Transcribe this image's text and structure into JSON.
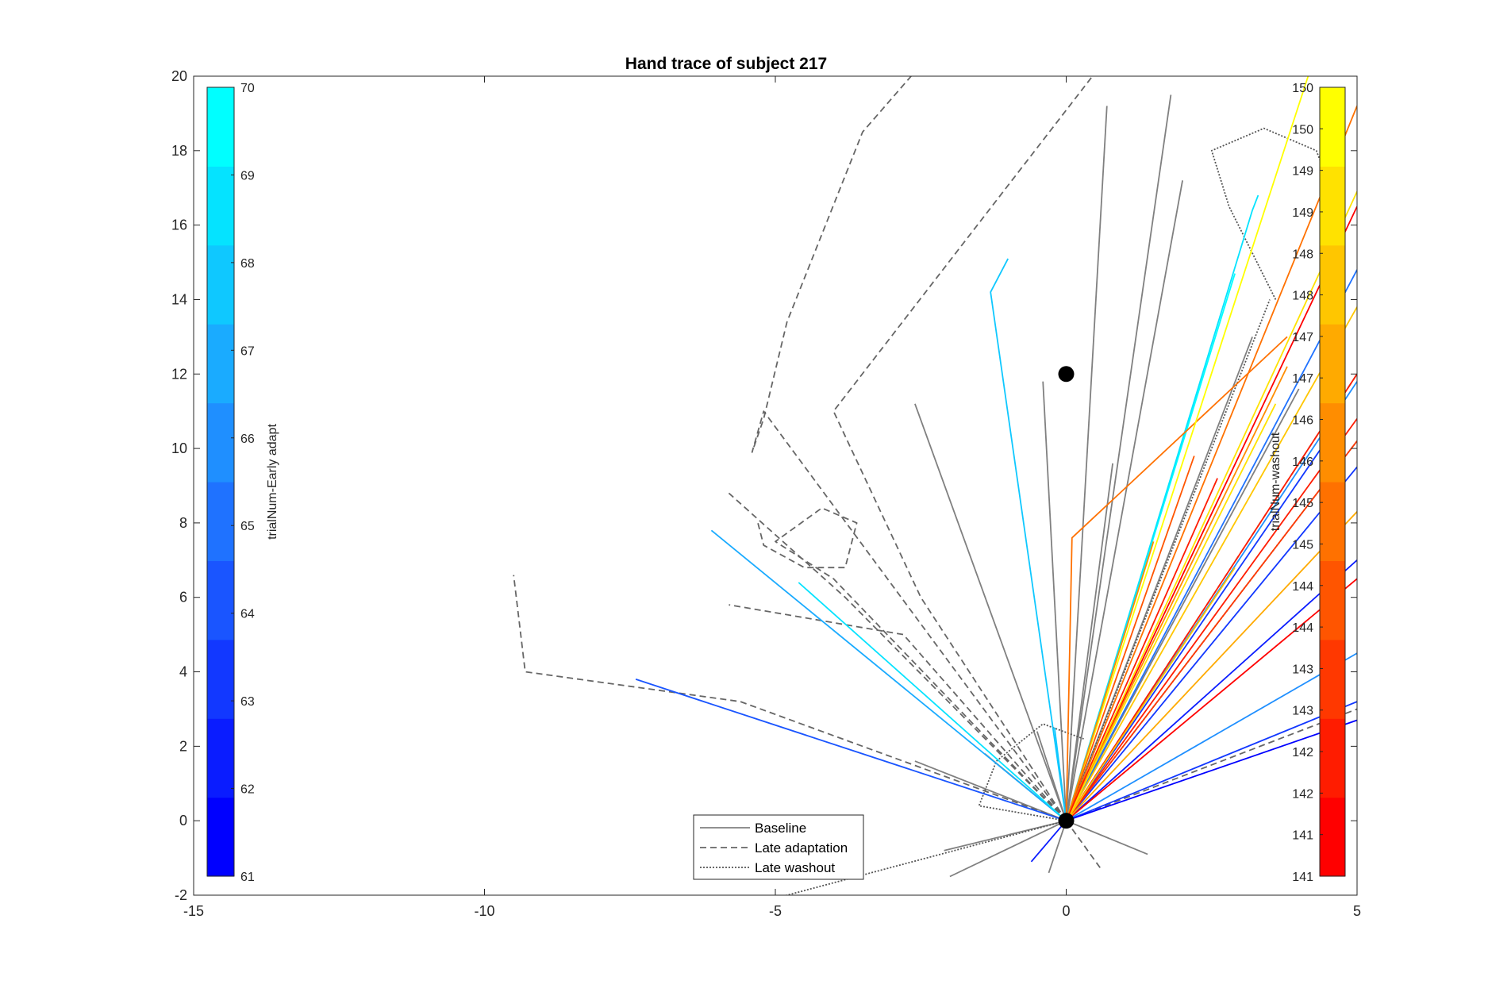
{
  "chart_data": {
    "type": "line",
    "title": "Hand trace of subject 217",
    "xlabel": "",
    "ylabel": "",
    "xlim": [
      -15,
      5
    ],
    "ylim": [
      -2,
      20
    ],
    "xticks": [
      -15,
      -10,
      -5,
      0,
      5
    ],
    "yticks": [
      -2,
      0,
      2,
      4,
      6,
      8,
      10,
      12,
      14,
      16,
      18,
      20
    ],
    "grid": false,
    "legend": {
      "position": "bottom-center",
      "entries": [
        {
          "label": "Baseline",
          "style": "solid",
          "color": "#808080"
        },
        {
          "label": "Late adaptation",
          "style": "dashed",
          "color": "#666666"
        },
        {
          "label": "Late washout",
          "style": "dotted",
          "color": "#555555"
        }
      ]
    },
    "markers": [
      {
        "name": "start",
        "x": 0,
        "y": 0,
        "color": "#000000"
      },
      {
        "name": "target",
        "x": 0,
        "y": 12,
        "color": "#000000"
      }
    ],
    "colorbars": [
      {
        "label": "trialNum-Early adapt",
        "position": "left",
        "ticks": [
          "61",
          "62",
          "63",
          "64",
          "65",
          "66",
          "67",
          "68",
          "69",
          "70"
        ],
        "colors": [
          "#0000ff",
          "#0a1cff",
          "#1238ff",
          "#1a55ff",
          "#1f72ff",
          "#1f8fff",
          "#1aabff",
          "#0fc8ff",
          "#05e3ff",
          "#00ffff"
        ]
      },
      {
        "label": "trialNum-washout",
        "position": "right",
        "ticks": [
          "141",
          "141",
          "142",
          "142",
          "143",
          "143",
          "144",
          "144",
          "145",
          "145",
          "146",
          "146",
          "147",
          "147",
          "148",
          "148",
          "149",
          "149",
          "150",
          "150"
        ],
        "colors": [
          "#ff0000",
          "#ff1c00",
          "#ff3800",
          "#ff5500",
          "#ff7100",
          "#ff8d00",
          "#ffaa00",
          "#ffc600",
          "#ffe200",
          "#ffff00"
        ]
      }
    ],
    "series": [
      {
        "group": "baseline",
        "style": "solid",
        "color": "#808080",
        "points": [
          [
            0,
            0
          ],
          [
            -0.4,
            11.8
          ]
        ]
      },
      {
        "group": "baseline",
        "style": "solid",
        "color": "#808080",
        "points": [
          [
            0,
            0
          ],
          [
            -2.6,
            11.2
          ]
        ]
      },
      {
        "group": "baseline",
        "style": "solid",
        "color": "#808080",
        "points": [
          [
            0,
            0
          ],
          [
            0.7,
            19.2
          ]
        ]
      },
      {
        "group": "baseline",
        "style": "solid",
        "color": "#808080",
        "points": [
          [
            0,
            0
          ],
          [
            1.8,
            19.5
          ]
        ]
      },
      {
        "group": "baseline",
        "style": "solid",
        "color": "#808080",
        "points": [
          [
            0,
            0
          ],
          [
            2,
            17.2
          ]
        ]
      },
      {
        "group": "baseline",
        "style": "solid",
        "color": "#808080",
        "points": [
          [
            0,
            0
          ],
          [
            0.8,
            9.6
          ]
        ]
      },
      {
        "group": "baseline",
        "style": "solid",
        "color": "#808080",
        "points": [
          [
            0,
            0
          ],
          [
            3.2,
            13
          ]
        ]
      },
      {
        "group": "baseline",
        "style": "solid",
        "color": "#808080",
        "points": [
          [
            0,
            0
          ],
          [
            4,
            11.6
          ]
        ]
      },
      {
        "group": "baseline",
        "style": "solid",
        "color": "#808080",
        "points": [
          [
            0,
            0
          ],
          [
            -2,
            -1.5
          ]
        ]
      },
      {
        "group": "baseline",
        "style": "solid",
        "color": "#808080",
        "points": [
          [
            0,
            0
          ],
          [
            -2.1,
            -0.8
          ]
        ]
      },
      {
        "group": "baseline",
        "style": "solid",
        "color": "#808080",
        "points": [
          [
            0,
            0
          ],
          [
            1.4,
            -0.9
          ]
        ]
      },
      {
        "group": "baseline",
        "style": "solid",
        "color": "#808080",
        "points": [
          [
            0,
            0
          ],
          [
            -1.4,
            1.8
          ]
        ]
      },
      {
        "group": "baseline",
        "style": "solid",
        "color": "#808080",
        "points": [
          [
            0,
            0
          ],
          [
            -0.5,
            2.4
          ]
        ]
      },
      {
        "group": "baseline",
        "style": "solid",
        "color": "#808080",
        "points": [
          [
            0,
            0
          ],
          [
            0.6,
            2
          ]
        ]
      },
      {
        "group": "baseline",
        "style": "solid",
        "color": "#808080",
        "points": [
          [
            0,
            0
          ],
          [
            -0.3,
            -1.4
          ]
        ]
      },
      {
        "group": "baseline",
        "style": "solid",
        "color": "#808080",
        "points": [
          [
            0,
            0
          ],
          [
            -2.6,
            1.6
          ]
        ]
      },
      {
        "group": "adaptation",
        "style": "dashed",
        "color": "#666666",
        "points": [
          [
            0,
            0
          ],
          [
            -5.2,
            11
          ],
          [
            -5.4,
            9.9
          ],
          [
            -5.2,
            10.8
          ],
          [
            -4.8,
            13.4
          ],
          [
            -3.5,
            18.5
          ],
          [
            -2.5,
            20.3
          ]
        ]
      },
      {
        "group": "adaptation",
        "style": "dashed",
        "color": "#666666",
        "points": [
          [
            0,
            0
          ],
          [
            -2.5,
            6
          ],
          [
            -4,
            11
          ],
          [
            0.6,
            20.3
          ]
        ]
      },
      {
        "group": "adaptation",
        "style": "dashed",
        "color": "#666666",
        "points": [
          [
            0,
            0
          ],
          [
            -5.6,
            3.2
          ],
          [
            -9.3,
            4
          ],
          [
            -9.5,
            6.6
          ]
        ]
      },
      {
        "group": "adaptation",
        "style": "dashed",
        "color": "#666666",
        "points": [
          [
            0,
            0
          ],
          [
            -3.8,
            6
          ],
          [
            -5.8,
            8.8
          ]
        ]
      },
      {
        "group": "adaptation",
        "style": "dashed",
        "color": "#666666",
        "points": [
          [
            0,
            0
          ],
          [
            -2.8,
            5
          ],
          [
            -5.8,
            5.8
          ]
        ]
      },
      {
        "group": "adaptation",
        "style": "dashed",
        "color": "#666666",
        "points": [
          [
            0,
            0
          ],
          [
            -4,
            6.5
          ],
          [
            -5,
            7.5
          ],
          [
            -4.2,
            8.4
          ],
          [
            -3.6,
            8
          ],
          [
            -3.8,
            6.8
          ],
          [
            -4.5,
            6.8
          ],
          [
            -5.2,
            7.4
          ],
          [
            -5.3,
            8
          ]
        ]
      },
      {
        "group": "adaptation",
        "style": "dashed",
        "color": "#666666",
        "points": [
          [
            0,
            0
          ],
          [
            5,
            3
          ]
        ]
      },
      {
        "group": "adaptation",
        "style": "dashed",
        "color": "#666666",
        "points": [
          [
            0,
            0
          ],
          [
            5,
            12
          ]
        ]
      },
      {
        "group": "adaptation",
        "style": "dashed",
        "color": "#666666",
        "points": [
          [
            0,
            0
          ],
          [
            0.6,
            -1.3
          ]
        ]
      },
      {
        "group": "washout",
        "style": "dotted",
        "color": "#555555",
        "points": [
          [
            0,
            0
          ],
          [
            -6,
            -2.5
          ]
        ]
      },
      {
        "group": "washout",
        "style": "dotted",
        "color": "#555555",
        "points": [
          [
            0,
            0
          ],
          [
            5,
            10.2
          ]
        ]
      },
      {
        "group": "washout",
        "style": "dotted",
        "color": "#555555",
        "points": [
          [
            0,
            0
          ],
          [
            3.5,
            14
          ]
        ]
      },
      {
        "group": "washout",
        "style": "dotted",
        "color": "#555555",
        "points": [
          [
            3.6,
            14
          ],
          [
            2.8,
            16.5
          ],
          [
            2.5,
            18
          ],
          [
            3.4,
            18.6
          ],
          [
            4.3,
            18
          ],
          [
            4.6,
            16.8
          ]
        ]
      },
      {
        "group": "washout",
        "style": "dotted",
        "color": "#555555",
        "points": [
          [
            0,
            0
          ],
          [
            -1.5,
            0.4
          ],
          [
            -1.2,
            1.6
          ],
          [
            -0.4,
            2.6
          ],
          [
            0.3,
            2.2
          ]
        ]
      },
      {
        "group": "early",
        "style": "solid",
        "color": "#1a55ff",
        "points": [
          [
            0,
            0
          ],
          [
            -7.4,
            3.8
          ]
        ]
      },
      {
        "group": "early",
        "style": "solid",
        "color": "#1aabff",
        "points": [
          [
            0,
            0
          ],
          [
            -6.1,
            7.8
          ]
        ]
      },
      {
        "group": "early",
        "style": "solid",
        "color": "#05e3ff",
        "points": [
          [
            0,
            0
          ],
          [
            -4.6,
            6.4
          ]
        ]
      },
      {
        "group": "early",
        "style": "solid",
        "color": "#0fc8ff",
        "points": [
          [
            0,
            0
          ],
          [
            -1.3,
            14.2
          ],
          [
            -1,
            15.1
          ]
        ]
      },
      {
        "group": "early",
        "style": "solid",
        "color": "#00ffff",
        "points": [
          [
            0,
            0
          ],
          [
            2.9,
            14.7
          ]
        ]
      },
      {
        "group": "early",
        "style": "solid",
        "color": "#05e3ff",
        "points": [
          [
            0,
            0
          ],
          [
            3.2,
            16.4
          ],
          [
            3.3,
            16.8
          ]
        ]
      },
      {
        "group": "early",
        "style": "solid",
        "color": "#1f72ff",
        "points": [
          [
            0,
            0
          ],
          [
            5,
            14.8
          ]
        ]
      },
      {
        "group": "early",
        "style": "solid",
        "color": "#1238ff",
        "points": [
          [
            0,
            0
          ],
          [
            5,
            9.5
          ]
        ]
      },
      {
        "group": "early",
        "style": "solid",
        "color": "#1238ff",
        "points": [
          [
            0,
            0
          ],
          [
            4.6,
            10.5
          ]
        ]
      },
      {
        "group": "early",
        "style": "solid",
        "color": "#0a1cff",
        "points": [
          [
            0,
            0
          ],
          [
            5,
            7
          ]
        ]
      },
      {
        "group": "early",
        "style": "solid",
        "color": "#1f8fff",
        "points": [
          [
            0,
            0
          ],
          [
            5,
            4.5
          ]
        ]
      },
      {
        "group": "early",
        "style": "solid",
        "color": "#1238ff",
        "points": [
          [
            0,
            0
          ],
          [
            5,
            3.2
          ]
        ]
      },
      {
        "group": "early",
        "style": "solid",
        "color": "#0000ff",
        "points": [
          [
            0,
            0
          ],
          [
            5,
            2.7
          ]
        ]
      },
      {
        "group": "early",
        "style": "solid",
        "color": "#1f8fff",
        "points": [
          [
            0,
            0
          ],
          [
            5,
            11.8
          ]
        ]
      },
      {
        "group": "early",
        "style": "solid",
        "color": "#0a1cff",
        "points": [
          [
            0,
            0
          ],
          [
            -0.6,
            -1.1
          ]
        ]
      },
      {
        "group": "early",
        "style": "solid",
        "color": "#0fc8ff",
        "points": [
          [
            0,
            0
          ],
          [
            -0.2,
            2.5
          ]
        ]
      },
      {
        "group": "washout-traj",
        "style": "solid",
        "color": "#ff7100",
        "points": [
          [
            0,
            0
          ],
          [
            0.1,
            7.6
          ],
          [
            3.8,
            13
          ]
        ]
      },
      {
        "group": "washout-traj",
        "style": "solid",
        "color": "#ff7100",
        "points": [
          [
            0,
            0
          ],
          [
            5,
            19.2
          ]
        ]
      },
      {
        "group": "washout-traj",
        "style": "solid",
        "color": "#ff3800",
        "points": [
          [
            0,
            0
          ],
          [
            5,
            10.2
          ]
        ]
      },
      {
        "group": "washout-traj",
        "style": "solid",
        "color": "#ff0000",
        "points": [
          [
            0,
            0
          ],
          [
            5,
            6.5
          ]
        ]
      },
      {
        "group": "washout-traj",
        "style": "solid",
        "color": "#ff1c00",
        "points": [
          [
            0,
            0
          ],
          [
            5,
            12
          ]
        ]
      },
      {
        "group": "washout-traj",
        "style": "solid",
        "color": "#ff0000",
        "points": [
          [
            0,
            0
          ],
          [
            5,
            16.5
          ]
        ]
      },
      {
        "group": "washout-traj",
        "style": "solid",
        "color": "#ff1c00",
        "points": [
          [
            0,
            0
          ],
          [
            5,
            10.8
          ]
        ]
      },
      {
        "group": "washout-traj",
        "style": "solid",
        "color": "#ffe200",
        "points": [
          [
            0,
            0
          ],
          [
            5,
            16.9
          ]
        ]
      },
      {
        "group": "washout-traj",
        "style": "solid",
        "color": "#ffff00",
        "points": [
          [
            0,
            0
          ],
          [
            4.2,
            20.2
          ]
        ]
      },
      {
        "group": "washout-traj",
        "style": "solid",
        "color": "#ffc600",
        "points": [
          [
            0,
            0
          ],
          [
            5,
            13.8
          ]
        ]
      },
      {
        "group": "washout-traj",
        "style": "solid",
        "color": "#ffaa00",
        "points": [
          [
            0,
            0
          ],
          [
            5,
            8.3
          ]
        ]
      },
      {
        "group": "washout-traj",
        "style": "solid",
        "color": "#ff8d00",
        "points": [
          [
            0,
            0
          ],
          [
            3.8,
            12.2
          ]
        ]
      },
      {
        "group": "washout-traj",
        "style": "solid",
        "color": "#ff5500",
        "points": [
          [
            0,
            0
          ],
          [
            2.2,
            9.8
          ]
        ]
      },
      {
        "group": "washout-traj",
        "style": "solid",
        "color": "#ffe200",
        "points": [
          [
            0,
            0
          ],
          [
            3.6,
            11.2
          ]
        ]
      },
      {
        "group": "washout-traj",
        "style": "solid",
        "color": "#ff8d00",
        "points": [
          [
            0,
            0
          ],
          [
            1.5,
            7.5
          ]
        ]
      },
      {
        "group": "washout-traj",
        "style": "solid",
        "color": "#ff1c00",
        "points": [
          [
            0,
            0
          ],
          [
            2.6,
            9.2
          ]
        ]
      },
      {
        "group": "washout-traj",
        "style": "solid",
        "color": "#ffc600",
        "points": [
          [
            0,
            0
          ],
          [
            2.9,
            6.8
          ]
        ]
      }
    ]
  }
}
